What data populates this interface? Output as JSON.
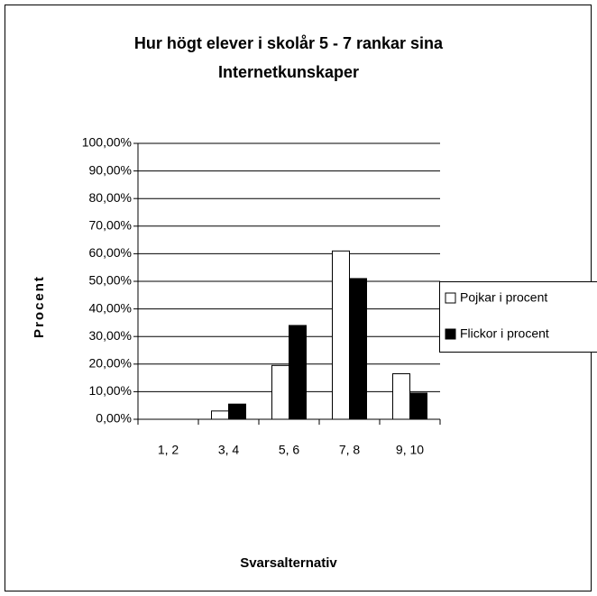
{
  "chart_data": {
    "type": "bar",
    "title": [
      "Hur högt elever i skolår 5 - 7 rankar sina",
      "Internetkunskaper"
    ],
    "x_label": "Svarsalternativ",
    "y_label": "Procent",
    "categories": [
      "1, 2",
      "3, 4",
      "5, 6",
      "7, 8",
      "9, 10"
    ],
    "series": [
      {
        "name": "Pojkar i procent",
        "color": "#ffffff",
        "values": [
          0,
          3,
          19.5,
          61,
          16.5
        ]
      },
      {
        "name": "Flickor i procent",
        "color": "#000000",
        "values": [
          0,
          5.5,
          34,
          51,
          9.5
        ]
      }
    ],
    "ylim": [
      0,
      100
    ],
    "yticks": [
      {
        "value": 0,
        "label": "0,00%"
      },
      {
        "value": 10,
        "label": "10,00%"
      },
      {
        "value": 20,
        "label": "20,00%"
      },
      {
        "value": 30,
        "label": "30,00%"
      },
      {
        "value": 40,
        "label": "40,00%"
      },
      {
        "value": 50,
        "label": "50,00%"
      },
      {
        "value": 60,
        "label": "60,00%"
      },
      {
        "value": 70,
        "label": "70,00%"
      },
      {
        "value": 80,
        "label": "80,00%"
      },
      {
        "value": 90,
        "label": "90,00%"
      },
      {
        "value": 100,
        "label": "100,00%"
      }
    ],
    "grid": true,
    "legend": "right"
  }
}
